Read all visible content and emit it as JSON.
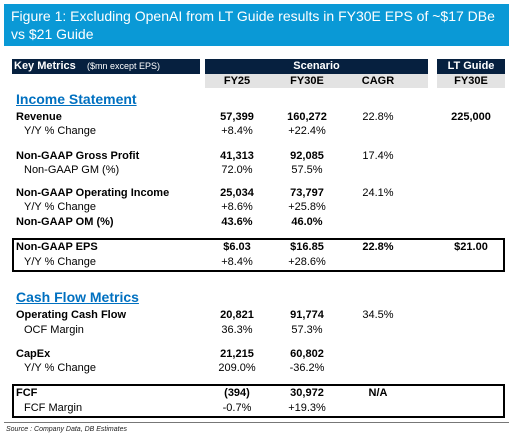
{
  "title": "Figure 1: Excluding OpenAI from LT Guide results in FY30E EPS of ~$17 DBe vs $21 Guide",
  "header": {
    "key_metrics": "Key Metrics",
    "key_metrics_note": "($mn except EPS)",
    "scenario": "Scenario",
    "lt_guide": "LT Guide",
    "cols": [
      "FY25",
      "FY30E",
      "CAGR",
      "FY30E"
    ]
  },
  "sections": {
    "income": "Income Statement",
    "cashflow": "Cash Flow Metrics"
  },
  "rows": {
    "revenue": {
      "label": "Revenue",
      "fy25": "57,399",
      "fy30": "160,272",
      "cagr": "22.8%",
      "lt": "225,000"
    },
    "revenue_yoy": {
      "label": "Y/Y % Change",
      "fy25": "+8.4%",
      "fy30": "+22.4%"
    },
    "gp": {
      "label": "Non-GAAP Gross Profit",
      "fy25": "41,313",
      "fy30": "92,085",
      "cagr": "17.4%"
    },
    "gm": {
      "label": "Non-GAAP GM (%)",
      "fy25": "72.0%",
      "fy30": "57.5%"
    },
    "oi": {
      "label": "Non-GAAP Operating Income",
      "fy25": "25,034",
      "fy30": "73,797",
      "cagr": "24.1%"
    },
    "oi_yoy": {
      "label": "Y/Y % Change",
      "fy25": "+8.6%",
      "fy30": "+25.8%"
    },
    "om": {
      "label": "Non-GAAP OM (%)",
      "fy25": "43.6%",
      "fy30": "46.0%"
    },
    "eps": {
      "label": "Non-GAAP EPS",
      "fy25": "$6.03",
      "fy30": "$16.85",
      "cagr": "22.8%",
      "lt": "$21.00"
    },
    "eps_yoy": {
      "label": "Y/Y % Change",
      "fy25": "+8.4%",
      "fy30": "+28.6%"
    },
    "ocf": {
      "label": "Operating Cash Flow",
      "fy25": "20,821",
      "fy30": "91,774",
      "cagr": "34.5%"
    },
    "ocf_margin": {
      "label": "OCF Margin",
      "fy25": "36.3%",
      "fy30": "57.3%"
    },
    "capex": {
      "label": "CapEx",
      "fy25": "21,215",
      "fy30": "60,802"
    },
    "capex_yoy": {
      "label": "Y/Y % Change",
      "fy25": "209.0%",
      "fy30": "-36.2%"
    },
    "fcf": {
      "label": "FCF",
      "fy25": "(394)",
      "fy30": "30,972",
      "cagr": "N/A"
    },
    "fcf_margin": {
      "label": "FCF Margin",
      "fy25": "-0.7%",
      "fy30": "+19.3%"
    }
  },
  "source": "Source : Company Data, DB Estimates"
}
